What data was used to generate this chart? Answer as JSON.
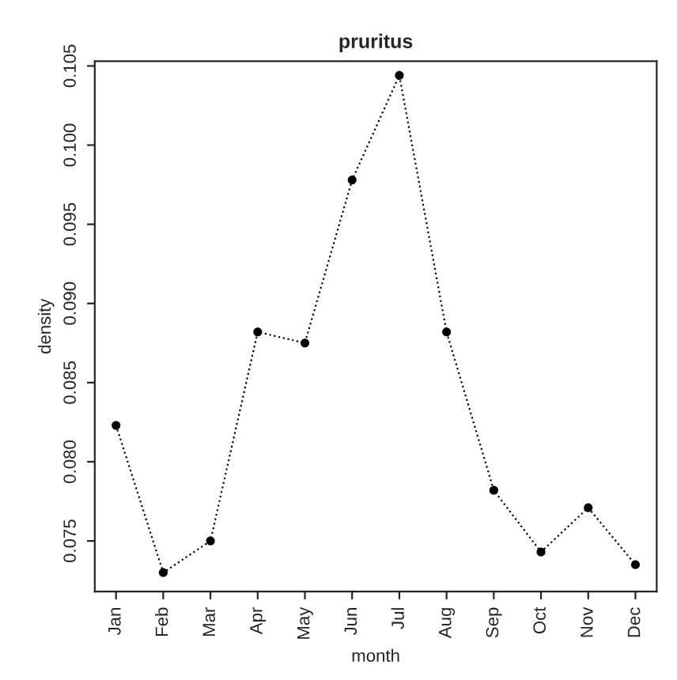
{
  "chart_data": {
    "type": "line",
    "title": "pruritus",
    "xlabel": "month",
    "ylabel": "density",
    "categories": [
      "Jan",
      "Feb",
      "Mar",
      "Apr",
      "May",
      "Jun",
      "Jul",
      "Aug",
      "Sep",
      "Oct",
      "Nov",
      "Dec"
    ],
    "series": [
      {
        "color": "#000000",
        "values": [
          0.0823,
          0.073,
          0.075,
          0.0882,
          0.0875,
          0.0978,
          0.1044,
          0.0882,
          0.0782,
          0.0743,
          0.0771,
          0.0735
        ]
      }
    ],
    "ylim": [
      0.0718,
      0.1053
    ],
    "yticks": [
      {
        "value": 0.075,
        "label": "0.075"
      },
      {
        "value": 0.08,
        "label": "0.080"
      },
      {
        "value": 0.085,
        "label": "0.085"
      },
      {
        "value": 0.09,
        "label": "0.090"
      },
      {
        "value": 0.095,
        "label": "0.095"
      },
      {
        "value": 0.1,
        "label": "0.100"
      },
      {
        "value": 0.105,
        "label": "0.105"
      }
    ],
    "marker": "circle",
    "line_style": "dotted",
    "grid": false,
    "legend": false
  }
}
